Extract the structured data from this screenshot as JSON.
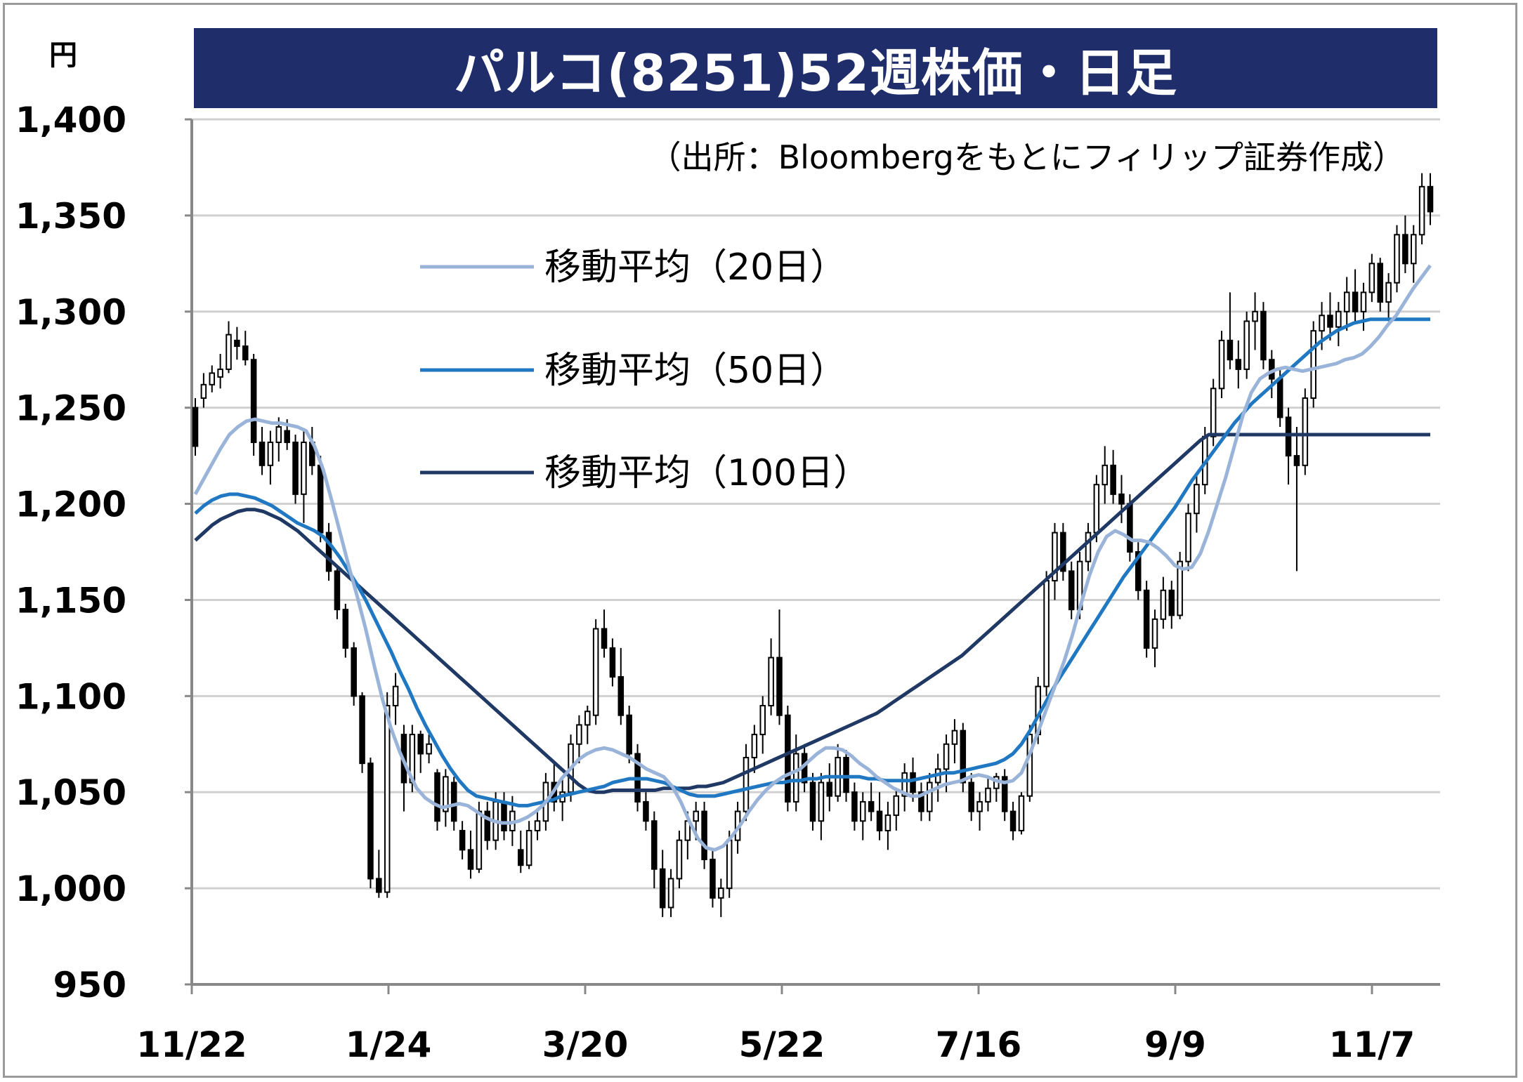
{
  "title": "パルコ(8251)52週株価・日足",
  "unit": "円",
  "source_note": "（出所：Bloombergをもとにフィリップ証券作成）",
  "colors": {
    "title_bg": "#1f2d6b",
    "ma20": "#9ab4d9",
    "ma50": "#1f78c1",
    "ma100": "#1f3864",
    "candle": "#000000",
    "grid": "#d0d0d0"
  },
  "chart_data": {
    "type": "candlestick",
    "ylim": [
      950,
      1400
    ],
    "y_ticks": [
      "950",
      "1,000",
      "1,050",
      "1,100",
      "1,150",
      "1,200",
      "1,250",
      "1,300",
      "1,350",
      "1,400"
    ],
    "y_tick_values": [
      950,
      1000,
      1050,
      1100,
      1150,
      1200,
      1250,
      1300,
      1350,
      1400
    ],
    "x_ticks": [
      "11/22",
      "1/24",
      "3/20",
      "5/22",
      "7/16",
      "9/9",
      "11/7"
    ],
    "legend": [
      {
        "key": "ma20",
        "label": "移動平均（20日）"
      },
      {
        "key": "ma50",
        "label": "移動平均（50日）"
      },
      {
        "key": "ma100",
        "label": "移動平均（100日）"
      }
    ],
    "ohlc": [
      [
        1250,
        1255,
        1225,
        1230
      ],
      [
        1255,
        1268,
        1250,
        1262
      ],
      [
        1262,
        1272,
        1258,
        1268
      ],
      [
        1266,
        1278,
        1260,
        1270
      ],
      [
        1270,
        1295,
        1268,
        1288
      ],
      [
        1285,
        1292,
        1275,
        1282
      ],
      [
        1282,
        1290,
        1272,
        1275
      ],
      [
        1275,
        1278,
        1225,
        1232
      ],
      [
        1232,
        1240,
        1215,
        1220
      ],
      [
        1220,
        1238,
        1210,
        1232
      ],
      [
        1232,
        1245,
        1222,
        1240
      ],
      [
        1238,
        1244,
        1228,
        1232
      ],
      [
        1232,
        1236,
        1200,
        1205
      ],
      [
        1205,
        1238,
        1190,
        1232
      ],
      [
        1232,
        1240,
        1215,
        1220
      ],
      [
        1220,
        1225,
        1180,
        1185
      ],
      [
        1185,
        1190,
        1160,
        1165
      ],
      [
        1165,
        1168,
        1140,
        1145
      ],
      [
        1145,
        1148,
        1120,
        1125
      ],
      [
        1125,
        1128,
        1095,
        1100
      ],
      [
        1100,
        1102,
        1060,
        1065
      ],
      [
        1065,
        1068,
        1000,
        1005
      ],
      [
        1005,
        1020,
        995,
        998
      ],
      [
        998,
        1102,
        995,
        1095
      ],
      [
        1095,
        1112,
        1085,
        1105
      ],
      [
        1080,
        1085,
        1040,
        1055
      ],
      [
        1055,
        1085,
        1050,
        1080
      ],
      [
        1080,
        1082,
        1060,
        1070
      ],
      [
        1070,
        1080,
        1065,
        1075
      ],
      [
        1060,
        1062,
        1030,
        1035
      ],
      [
        1040,
        1062,
        1032,
        1058
      ],
      [
        1055,
        1058,
        1030,
        1035
      ],
      [
        1030,
        1035,
        1015,
        1020
      ],
      [
        1020,
        1030,
        1005,
        1010
      ],
      [
        1010,
        1045,
        1008,
        1040
      ],
      [
        1040,
        1045,
        1020,
        1025
      ],
      [
        1025,
        1050,
        1020,
        1045
      ],
      [
        1045,
        1050,
        1025,
        1030
      ],
      [
        1030,
        1048,
        1022,
        1040
      ],
      [
        1020,
        1030,
        1008,
        1012
      ],
      [
        1012,
        1035,
        1010,
        1030
      ],
      [
        1030,
        1040,
        1025,
        1035
      ],
      [
        1035,
        1060,
        1030,
        1055
      ],
      [
        1055,
        1065,
        1040,
        1045
      ],
      [
        1045,
        1058,
        1035,
        1050
      ],
      [
        1050,
        1080,
        1045,
        1075
      ],
      [
        1075,
        1090,
        1065,
        1085
      ],
      [
        1085,
        1095,
        1075,
        1092
      ],
      [
        1090,
        1140,
        1085,
        1135
      ],
      [
        1135,
        1145,
        1120,
        1125
      ],
      [
        1125,
        1130,
        1105,
        1110
      ],
      [
        1110,
        1125,
        1085,
        1090
      ],
      [
        1090,
        1095,
        1065,
        1070
      ],
      [
        1070,
        1075,
        1040,
        1045
      ],
      [
        1045,
        1050,
        1030,
        1035
      ],
      [
        1035,
        1040,
        1000,
        1010
      ],
      [
        1010,
        1020,
        985,
        990
      ],
      [
        990,
        1010,
        985,
        1005
      ],
      [
        1005,
        1030,
        1000,
        1025
      ],
      [
        1025,
        1040,
        1015,
        1035
      ],
      [
        1035,
        1045,
        1025,
        1040
      ],
      [
        1040,
        1045,
        1010,
        1015
      ],
      [
        1015,
        1020,
        990,
        995
      ],
      [
        995,
        1005,
        985,
        1000
      ],
      [
        1000,
        1030,
        995,
        1025
      ],
      [
        1025,
        1045,
        1018,
        1040
      ],
      [
        1040,
        1075,
        1035,
        1068
      ],
      [
        1068,
        1085,
        1060,
        1080
      ],
      [
        1080,
        1100,
        1070,
        1095
      ],
      [
        1095,
        1130,
        1090,
        1120
      ],
      [
        1120,
        1145,
        1085,
        1090
      ],
      [
        1090,
        1095,
        1040,
        1045
      ],
      [
        1045,
        1080,
        1040,
        1070
      ],
      [
        1070,
        1075,
        1050,
        1055
      ],
      [
        1055,
        1060,
        1030,
        1035
      ],
      [
        1035,
        1060,
        1025,
        1055
      ],
      [
        1055,
        1065,
        1040,
        1048
      ],
      [
        1048,
        1075,
        1045,
        1068
      ],
      [
        1068,
        1072,
        1045,
        1050
      ],
      [
        1050,
        1055,
        1030,
        1035
      ],
      [
        1035,
        1050,
        1025,
        1045
      ],
      [
        1045,
        1055,
        1035,
        1040
      ],
      [
        1040,
        1050,
        1025,
        1030
      ],
      [
        1030,
        1045,
        1020,
        1038
      ],
      [
        1038,
        1052,
        1030,
        1048
      ],
      [
        1048,
        1065,
        1040,
        1060
      ],
      [
        1060,
        1068,
        1045,
        1050
      ],
      [
        1050,
        1055,
        1035,
        1040
      ],
      [
        1040,
        1060,
        1035,
        1055
      ],
      [
        1055,
        1070,
        1045,
        1062
      ],
      [
        1062,
        1080,
        1050,
        1075
      ],
      [
        1075,
        1088,
        1065,
        1082
      ],
      [
        1082,
        1086,
        1050,
        1055
      ],
      [
        1055,
        1060,
        1035,
        1040
      ],
      [
        1040,
        1050,
        1030,
        1045
      ],
      [
        1045,
        1058,
        1040,
        1052
      ],
      [
        1052,
        1060,
        1045,
        1058
      ],
      [
        1058,
        1062,
        1035,
        1040
      ],
      [
        1040,
        1045,
        1025,
        1030
      ],
      [
        1030,
        1050,
        1028,
        1048
      ],
      [
        1048,
        1085,
        1045,
        1080
      ],
      [
        1080,
        1110,
        1075,
        1105
      ],
      [
        1105,
        1165,
        1100,
        1160
      ],
      [
        1160,
        1190,
        1150,
        1185
      ],
      [
        1185,
        1190,
        1160,
        1165
      ],
      [
        1165,
        1170,
        1140,
        1145
      ],
      [
        1145,
        1175,
        1140,
        1170
      ],
      [
        1170,
        1190,
        1165,
        1185
      ],
      [
        1185,
        1215,
        1180,
        1210
      ],
      [
        1210,
        1230,
        1200,
        1220
      ],
      [
        1220,
        1228,
        1200,
        1205
      ],
      [
        1205,
        1215,
        1190,
        1200
      ],
      [
        1200,
        1205,
        1170,
        1175
      ],
      [
        1175,
        1180,
        1150,
        1155
      ],
      [
        1155,
        1160,
        1120,
        1125
      ],
      [
        1125,
        1145,
        1115,
        1140
      ],
      [
        1140,
        1162,
        1135,
        1155
      ],
      [
        1155,
        1160,
        1135,
        1142
      ],
      [
        1142,
        1175,
        1140,
        1170
      ],
      [
        1170,
        1200,
        1165,
        1195
      ],
      [
        1195,
        1215,
        1185,
        1210
      ],
      [
        1210,
        1240,
        1205,
        1235
      ],
      [
        1235,
        1265,
        1230,
        1260
      ],
      [
        1260,
        1290,
        1255,
        1285
      ],
      [
        1285,
        1310,
        1270,
        1275
      ],
      [
        1275,
        1285,
        1260,
        1270
      ],
      [
        1270,
        1300,
        1265,
        1295
      ],
      [
        1295,
        1310,
        1280,
        1300
      ],
      [
        1300,
        1305,
        1270,
        1275
      ],
      [
        1275,
        1280,
        1255,
        1265
      ],
      [
        1265,
        1270,
        1240,
        1245
      ],
      [
        1245,
        1250,
        1210,
        1225
      ],
      [
        1225,
        1240,
        1165,
        1220
      ],
      [
        1220,
        1260,
        1215,
        1255
      ],
      [
        1255,
        1295,
        1250,
        1290
      ],
      [
        1290,
        1305,
        1280,
        1298
      ],
      [
        1298,
        1310,
        1285,
        1292
      ],
      [
        1292,
        1305,
        1282,
        1300
      ],
      [
        1300,
        1318,
        1290,
        1310
      ],
      [
        1310,
        1322,
        1295,
        1300
      ],
      [
        1300,
        1315,
        1290,
        1310
      ],
      [
        1310,
        1330,
        1305,
        1325
      ],
      [
        1325,
        1328,
        1300,
        1305
      ],
      [
        1305,
        1320,
        1295,
        1315
      ],
      [
        1315,
        1345,
        1310,
        1340
      ],
      [
        1340,
        1350,
        1320,
        1325
      ],
      [
        1325,
        1345,
        1315,
        1340
      ],
      [
        1340,
        1372,
        1335,
        1365
      ],
      [
        1365,
        1372,
        1345,
        1352
      ]
    ],
    "ma20": [
      1205,
      1213,
      1221,
      1229,
      1236,
      1240,
      1243,
      1244,
      1243,
      1242,
      1242,
      1241,
      1240,
      1238,
      1230,
      1218,
      1202,
      1185,
      1168,
      1152,
      1135,
      1116,
      1098,
      1083,
      1071,
      1061,
      1052,
      1047,
      1044,
      1042,
      1043,
      1044,
      1043,
      1040,
      1037,
      1035,
      1034,
      1034,
      1035,
      1037,
      1040,
      1044,
      1050,
      1057,
      1062,
      1067,
      1070,
      1072,
      1073,
      1072,
      1070,
      1068,
      1065,
      1062,
      1060,
      1058,
      1053,
      1045,
      1035,
      1026,
      1021,
      1020,
      1022,
      1027,
      1033,
      1040,
      1046,
      1051,
      1055,
      1058,
      1060,
      1062,
      1066,
      1070,
      1073,
      1073,
      1072,
      1069,
      1065,
      1062,
      1058,
      1055,
      1052,
      1050,
      1048,
      1048,
      1050,
      1052,
      1054,
      1055,
      1056,
      1058,
      1059,
      1058,
      1056,
      1055,
      1056,
      1060,
      1070,
      1082,
      1094,
      1106,
      1118,
      1132,
      1148,
      1163,
      1175,
      1183,
      1186,
      1184,
      1181,
      1181,
      1180,
      1177,
      1173,
      1168,
      1166,
      1167,
      1174,
      1186,
      1200,
      1214,
      1230,
      1246,
      1258,
      1265,
      1268,
      1270,
      1271,
      1270,
      1269,
      1270,
      1271,
      1272,
      1273,
      1275,
      1276,
      1278,
      1282,
      1287,
      1293,
      1298,
      1305,
      1312,
      1318,
      1324
    ],
    "ma50": [
      1195,
      1199,
      1202,
      1204,
      1205,
      1205,
      1204,
      1203,
      1201,
      1199,
      1196,
      1193,
      1190,
      1188,
      1186,
      1183,
      1178,
      1172,
      1165,
      1158,
      1150,
      1141,
      1132,
      1123,
      1113,
      1104,
      1094,
      1085,
      1077,
      1069,
      1062,
      1056,
      1051,
      1048,
      1047,
      1046,
      1045,
      1044,
      1043,
      1043,
      1044,
      1045,
      1046,
      1048,
      1049,
      1050,
      1051,
      1052,
      1053,
      1055,
      1056,
      1057,
      1057,
      1057,
      1056,
      1055,
      1053,
      1051,
      1049,
      1048,
      1048,
      1048,
      1049,
      1050,
      1051,
      1052,
      1053,
      1054,
      1055,
      1055,
      1056,
      1056,
      1057,
      1057,
      1058,
      1058,
      1058,
      1058,
      1058,
      1057,
      1057,
      1056,
      1056,
      1056,
      1056,
      1057,
      1058,
      1059,
      1060,
      1060,
      1061,
      1062,
      1063,
      1064,
      1065,
      1067,
      1070,
      1075,
      1082,
      1090,
      1098,
      1106,
      1113,
      1120,
      1127,
      1134,
      1141,
      1148,
      1155,
      1162,
      1168,
      1174,
      1180,
      1186,
      1192,
      1198,
      1205,
      1212,
      1218,
      1224,
      1230,
      1236,
      1242,
      1247,
      1252,
      1256,
      1260,
      1264,
      1268,
      1272,
      1276,
      1280,
      1284,
      1287,
      1290,
      1292,
      1294,
      1295,
      1296,
      1296,
      1296,
      1296,
      1296,
      1296,
      1296,
      1296
    ],
    "ma100": [
      1181,
      1185,
      1189,
      1192,
      1194,
      1196,
      1197,
      1197,
      1196,
      1194,
      1192,
      1189,
      1186,
      1182,
      1178,
      1174,
      1170,
      1166,
      1162,
      1158,
      1154,
      1150,
      1146,
      1142,
      1138,
      1134,
      1130,
      1126,
      1122,
      1118,
      1114,
      1110,
      1106,
      1102,
      1098,
      1094,
      1090,
      1086,
      1082,
      1078,
      1074,
      1070,
      1066,
      1062,
      1058,
      1054,
      1051,
      1050,
      1050,
      1051,
      1051,
      1051,
      1051,
      1051,
      1051,
      1052,
      1052,
      1052,
      1052,
      1053,
      1053,
      1054,
      1055,
      1057,
      1059,
      1061,
      1063,
      1065,
      1067,
      1069,
      1071,
      1073,
      1075,
      1077,
      1079,
      1081,
      1083,
      1085,
      1087,
      1089,
      1091,
      1094,
      1097,
      1100,
      1103,
      1106,
      1109,
      1112,
      1115,
      1118,
      1121,
      1125,
      1129,
      1133,
      1137,
      1141,
      1145,
      1149,
      1153,
      1157,
      1161,
      1165,
      1169,
      1173,
      1177,
      1181,
      1185,
      1189,
      1193,
      1197,
      1201,
      1205,
      1209,
      1213,
      1217,
      1221,
      1225,
      1229,
      1233,
      1236,
      1236,
      1236,
      1236,
      1236,
      1236,
      1236,
      1236,
      1236,
      1236,
      1236,
      1236,
      1236,
      1236,
      1236,
      1236,
      1236,
      1236,
      1236,
      1236,
      1236,
      1236,
      1236,
      1236,
      1236,
      1236,
      1236
    ]
  }
}
